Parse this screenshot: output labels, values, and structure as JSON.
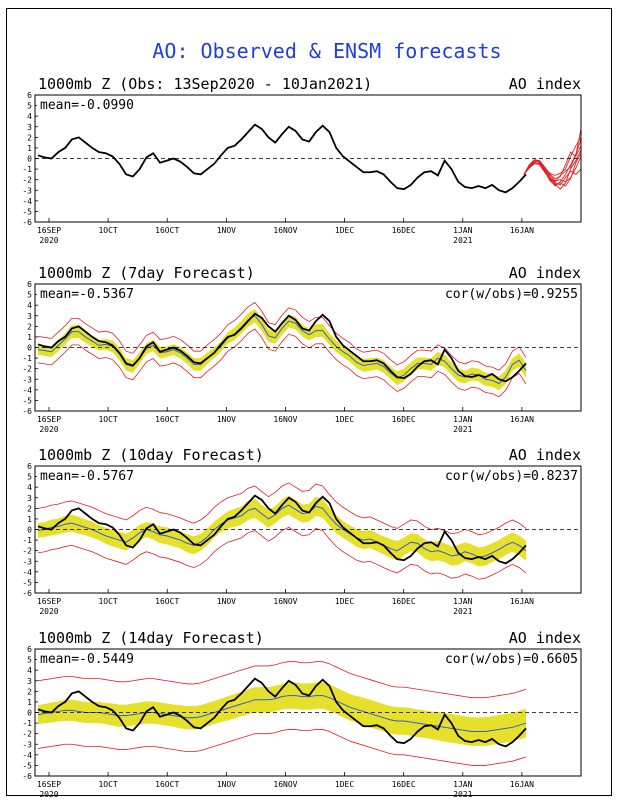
{
  "title": "AO: Observed & ENSM forecasts",
  "colors": {
    "title": "#1f3fd9",
    "observed": "#000000",
    "ensemble_member": "#e02020",
    "spread_band": "#e6e02a",
    "ensemble_mean": "#2f5fd0",
    "zero_line": "#000000"
  },
  "chart_data": [
    {
      "type": "line",
      "title": "1000mb Z (Obs: 13Sep2020 - 10Jan2021)",
      "right_label": "AO index",
      "stat_label": "mean=-0.0990",
      "cor_label": "",
      "ylim": [
        -6,
        6
      ],
      "yticks": [
        "6",
        "5",
        "4",
        "3",
        "2",
        "1",
        "0",
        "-1",
        "-2",
        "-3",
        "-4",
        "-5",
        "-6"
      ],
      "xticks": [
        "16SEP",
        "1OCT",
        "16OCT",
        "1NOV",
        "16NOV",
        "1DEC",
        "16DEC",
        "1JAN",
        "16JAN"
      ],
      "year_labels": [
        "2020",
        "2021"
      ],
      "observed": [
        0.3,
        0.1,
        0.0,
        0.6,
        1.0,
        1.8,
        2.0,
        1.5,
        1.0,
        0.6,
        0.5,
        0.2,
        -0.5,
        -1.5,
        -1.7,
        -1.0,
        0.1,
        0.5,
        -0.4,
        -0.2,
        0.0,
        -0.3,
        -0.8,
        -1.4,
        -1.5,
        -1.0,
        -0.5,
        0.3,
        1.0,
        1.2,
        1.8,
        2.5,
        3.2,
        2.8,
        2.0,
        1.5,
        2.3,
        3.0,
        2.6,
        1.8,
        1.6,
        2.5,
        3.1,
        2.5,
        1.0,
        0.2,
        -0.3,
        -0.8,
        -1.3,
        -1.3,
        -1.2,
        -1.5,
        -2.2,
        -2.8,
        -2.9,
        -2.5,
        -1.8,
        -1.3,
        -1.2,
        -1.6,
        -0.2,
        -1.0,
        -2.2,
        -2.7,
        -2.8,
        -2.6,
        -2.8,
        -2.5,
        -3.0,
        -3.2,
        -2.8,
        -2.2,
        -1.5
      ],
      "forecasts": [
        [
          -1.5,
          -0.8,
          -0.3,
          -0.3,
          -1.0,
          -1.8,
          -2.2,
          -1.6,
          -1.2,
          -0.8,
          0.3,
          2.8
        ],
        [
          -1.5,
          -0.7,
          -0.2,
          -0.4,
          -1.2,
          -2.0,
          -2.6,
          -2.2,
          -1.5,
          -0.6,
          0.4,
          1.8
        ],
        [
          -1.5,
          -0.9,
          -0.4,
          -0.6,
          -1.3,
          -1.9,
          -2.4,
          -2.9,
          -2.3,
          -1.0,
          -0.2,
          0.8
        ],
        [
          -1.5,
          -0.8,
          -0.3,
          -0.3,
          -0.9,
          -1.4,
          -1.6,
          -1.4,
          -1.0,
          0.2,
          1.2,
          2.0
        ],
        [
          -1.5,
          -0.6,
          -0.1,
          -0.2,
          -0.9,
          -1.6,
          -2.1,
          -2.0,
          -2.2,
          -1.8,
          -0.9,
          0.2
        ],
        [
          -1.5,
          -0.9,
          -0.5,
          -0.5,
          -1.1,
          -1.8,
          -2.3,
          -2.5,
          -1.8,
          -1.2,
          -1.5,
          -1.0
        ],
        [
          -1.5,
          -0.7,
          -0.2,
          -0.2,
          -0.8,
          -1.5,
          -1.9,
          -1.7,
          -0.6,
          0.6,
          0.2,
          1.2
        ],
        [
          -1.5,
          -0.8,
          -0.4,
          -0.5,
          -1.2,
          -2.1,
          -2.5,
          -2.3,
          -2.6,
          -1.9,
          -0.4,
          0.5
        ]
      ]
    },
    {
      "type": "line",
      "title": "1000mb Z (7day Forecast)",
      "right_label": "AO index",
      "stat_label": "mean=-0.5367",
      "cor_label": "cor(w/obs)=0.9255",
      "ylim": [
        -6,
        6
      ],
      "yticks": [
        "6",
        "5",
        "4",
        "3",
        "2",
        "1",
        "0",
        "-1",
        "-2",
        "-3",
        "-4",
        "-5",
        "-6"
      ],
      "xticks": [
        "16SEP",
        "1OCT",
        "16OCT",
        "1NOV",
        "16NOV",
        "1DEC",
        "16DEC",
        "1JAN",
        "16JAN"
      ],
      "year_labels": [
        "2020",
        "2021"
      ],
      "observed": [
        0.3,
        0.1,
        0.0,
        0.6,
        1.0,
        1.8,
        2.0,
        1.5,
        1.0,
        0.6,
        0.5,
        0.2,
        -0.5,
        -1.5,
        -1.7,
        -1.0,
        0.1,
        0.5,
        -0.4,
        -0.2,
        0.0,
        -0.3,
        -0.8,
        -1.4,
        -1.5,
        -1.0,
        -0.5,
        0.3,
        1.0,
        1.2,
        1.8,
        2.5,
        3.2,
        2.8,
        2.0,
        1.5,
        2.3,
        3.0,
        2.6,
        1.8,
        1.6,
        2.5,
        3.1,
        2.5,
        1.0,
        0.2,
        -0.3,
        -0.8,
        -1.3,
        -1.3,
        -1.2,
        -1.5,
        -2.2,
        -2.8,
        -2.9,
        -2.5,
        -1.8,
        -1.3,
        -1.2,
        -1.6,
        -0.2,
        -1.0,
        -2.2,
        -2.7,
        -2.8,
        -2.6,
        -2.8,
        -2.5,
        -3.0,
        -3.2,
        -2.8,
        -2.2,
        -1.5
      ],
      "mean": [
        -0.2,
        -0.3,
        -0.4,
        0.2,
        0.8,
        1.5,
        1.5,
        1.0,
        0.6,
        0.2,
        0.3,
        0.1,
        -0.6,
        -1.6,
        -1.8,
        -1.0,
        -0.1,
        0.2,
        -0.5,
        -0.4,
        -0.2,
        -0.5,
        -1.0,
        -1.6,
        -1.6,
        -1.0,
        -0.5,
        0.1,
        0.9,
        1.3,
        1.9,
        2.6,
        3.0,
        2.2,
        1.1,
        0.9,
        1.8,
        2.5,
        2.3,
        1.6,
        1.2,
        1.6,
        1.6,
        0.8,
        0.1,
        -0.4,
        -0.8,
        -1.4,
        -1.7,
        -1.6,
        -1.5,
        -1.8,
        -2.4,
        -2.9,
        -2.6,
        -2.0,
        -1.5,
        -1.5,
        -1.6,
        -1.0,
        -1.3,
        -2.0,
        -2.6,
        -2.8,
        -2.5,
        -2.6,
        -3.0,
        -3.1,
        -3.4,
        -2.8,
        -1.6,
        -1.2,
        -2.2
      ],
      "spread": [
        0.5,
        0.5,
        0.5,
        0.55,
        0.55,
        0.6,
        0.6,
        0.55,
        0.55,
        0.5,
        0.5,
        0.55,
        0.6,
        0.6,
        0.6,
        0.55,
        0.5,
        0.55,
        0.55,
        0.5,
        0.5,
        0.55,
        0.55,
        0.6,
        0.6,
        0.55,
        0.5,
        0.5,
        0.55,
        0.6,
        0.6,
        0.65,
        0.65,
        0.6,
        0.6,
        0.55,
        0.6,
        0.6,
        0.6,
        0.55,
        0.55,
        0.6,
        0.6,
        0.55,
        0.55,
        0.5,
        0.55,
        0.55,
        0.6,
        0.6,
        0.55,
        0.6,
        0.6,
        0.65,
        0.6,
        0.6,
        0.55,
        0.55,
        0.6,
        0.6,
        0.6,
        0.6,
        0.65,
        0.6,
        0.6,
        0.6,
        0.65,
        0.6,
        0.65,
        0.65,
        0.6,
        0.65,
        0.7
      ],
      "envelope": 1.25
    },
    {
      "type": "line",
      "title": "1000mb Z (10day Forecast)",
      "right_label": "AO index",
      "stat_label": "mean=-0.5767",
      "cor_label": "cor(w/obs)=0.8237",
      "ylim": [
        -6,
        6
      ],
      "yticks": [
        "6",
        "5",
        "4",
        "3",
        "2",
        "1",
        "0",
        "-1",
        "-2",
        "-3",
        "-4",
        "-5",
        "-6"
      ],
      "xticks": [
        "16SEP",
        "1OCT",
        "16OCT",
        "1NOV",
        "16NOV",
        "1DEC",
        "16DEC",
        "1JAN",
        "16JAN"
      ],
      "year_labels": [
        "2020",
        "2021"
      ],
      "observed": [
        0.3,
        0.1,
        0.0,
        0.6,
        1.0,
        1.8,
        2.0,
        1.5,
        1.0,
        0.6,
        0.5,
        0.2,
        -0.5,
        -1.5,
        -1.7,
        -1.0,
        0.1,
        0.5,
        -0.4,
        -0.2,
        0.0,
        -0.3,
        -0.8,
        -1.4,
        -1.5,
        -1.0,
        -0.5,
        0.3,
        1.0,
        1.2,
        1.8,
        2.5,
        3.2,
        2.8,
        2.0,
        1.5,
        2.3,
        3.0,
        2.6,
        1.8,
        1.6,
        2.5,
        3.1,
        2.5,
        1.0,
        0.2,
        -0.3,
        -0.8,
        -1.3,
        -1.3,
        -1.2,
        -1.5,
        -2.2,
        -2.8,
        -2.9,
        -2.5,
        -1.8,
        -1.3,
        -1.2,
        -1.6,
        -0.2,
        -1.0,
        -2.2,
        -2.7,
        -2.8,
        -2.6,
        -2.8,
        -2.5,
        -3.0,
        -3.2,
        -2.8,
        -2.2,
        -1.5
      ],
      "mean": [
        -0.1,
        0.0,
        0.2,
        0.3,
        0.5,
        0.6,
        0.4,
        0.2,
        0.0,
        -0.3,
        -0.6,
        -0.8,
        -1.0,
        -1.2,
        -0.8,
        -0.3,
        0.0,
        -0.2,
        -0.5,
        -0.6,
        -0.8,
        -1.0,
        -1.3,
        -1.5,
        -1.2,
        -0.7,
        0.0,
        0.5,
        0.9,
        1.1,
        1.3,
        1.8,
        2.0,
        1.5,
        1.0,
        1.4,
        2.0,
        2.3,
        1.9,
        1.5,
        1.6,
        2.2,
        2.0,
        1.2,
        0.5,
        0.0,
        -0.4,
        -0.8,
        -1.0,
        -0.9,
        -1.2,
        -1.5,
        -1.8,
        -2.0,
        -1.6,
        -1.2,
        -1.3,
        -1.8,
        -2.1,
        -2.0,
        -2.2,
        -2.5,
        -2.4,
        -2.1,
        -2.3,
        -2.6,
        -2.5,
        -2.2,
        -1.9,
        -1.5,
        -1.2,
        -1.5,
        -2.0
      ],
      "spread": [
        0.7,
        0.7,
        0.75,
        0.75,
        0.8,
        0.8,
        0.8,
        0.75,
        0.75,
        0.7,
        0.75,
        0.8,
        0.8,
        0.8,
        0.75,
        0.75,
        0.7,
        0.75,
        0.8,
        0.8,
        0.8,
        0.8,
        0.85,
        0.85,
        0.8,
        0.8,
        0.75,
        0.75,
        0.8,
        0.85,
        0.85,
        0.9,
        0.9,
        0.85,
        0.85,
        0.8,
        0.85,
        0.9,
        0.9,
        0.85,
        0.85,
        0.9,
        0.9,
        0.85,
        0.85,
        0.8,
        0.8,
        0.85,
        0.85,
        0.85,
        0.85,
        0.85,
        0.9,
        0.9,
        0.85,
        0.85,
        0.85,
        0.9,
        0.9,
        0.9,
        0.9,
        0.9,
        0.95,
        0.9,
        0.9,
        0.9,
        0.9,
        0.9,
        0.9,
        0.9,
        0.9,
        0.95,
        0.95
      ],
      "envelope": 2.1
    },
    {
      "type": "line",
      "title": "1000mb Z (14day Forecast)",
      "right_label": "AO index",
      "stat_label": "mean=-0.5449",
      "cor_label": "cor(w/obs)=0.6605",
      "ylim": [
        -6,
        6
      ],
      "yticks": [
        "6",
        "5",
        "4",
        "3",
        "2",
        "1",
        "0",
        "-1",
        "-2",
        "-3",
        "-4",
        "-5",
        "-6"
      ],
      "xticks": [
        "16SEP",
        "1OCT",
        "16OCT",
        "1NOV",
        "16NOV",
        "1DEC",
        "16DEC",
        "1JAN",
        "16JAN"
      ],
      "year_labels": [
        "2020",
        "2021"
      ],
      "observed": [
        0.3,
        0.1,
        0.0,
        0.6,
        1.0,
        1.8,
        2.0,
        1.5,
        1.0,
        0.6,
        0.5,
        0.2,
        -0.5,
        -1.5,
        -1.7,
        -1.0,
        0.1,
        0.5,
        -0.4,
        -0.2,
        0.0,
        -0.3,
        -0.8,
        -1.4,
        -1.5,
        -1.0,
        -0.5,
        0.3,
        1.0,
        1.2,
        1.8,
        2.5,
        3.2,
        2.8,
        2.0,
        1.5,
        2.3,
        3.0,
        2.6,
        1.8,
        1.6,
        2.5,
        3.1,
        2.5,
        1.0,
        0.2,
        -0.3,
        -0.8,
        -1.3,
        -1.3,
        -1.2,
        -1.5,
        -2.2,
        -2.8,
        -2.9,
        -2.5,
        -1.8,
        -1.3,
        -1.2,
        -1.6,
        -0.2,
        -1.0,
        -2.2,
        -2.7,
        -2.8,
        -2.6,
        -2.8,
        -2.5,
        -3.0,
        -3.2,
        -2.8,
        -2.2,
        -1.5
      ],
      "mean": [
        -0.2,
        -0.1,
        0.0,
        0.1,
        0.2,
        0.2,
        0.1,
        0.0,
        0.0,
        0.0,
        -0.1,
        -0.2,
        -0.3,
        -0.3,
        -0.2,
        -0.1,
        0.0,
        0.0,
        -0.1,
        -0.2,
        -0.3,
        -0.4,
        -0.5,
        -0.5,
        -0.4,
        -0.2,
        0.0,
        0.2,
        0.4,
        0.6,
        0.8,
        1.0,
        1.2,
        1.2,
        1.2,
        1.3,
        1.5,
        1.6,
        1.6,
        1.5,
        1.5,
        1.6,
        1.6,
        1.4,
        1.1,
        0.8,
        0.5,
        0.3,
        0.1,
        -0.1,
        -0.3,
        -0.5,
        -0.7,
        -0.8,
        -0.8,
        -0.9,
        -1.0,
        -1.1,
        -1.2,
        -1.3,
        -1.4,
        -1.5,
        -1.6,
        -1.7,
        -1.8,
        -1.8,
        -1.8,
        -1.7,
        -1.6,
        -1.5,
        -1.4,
        -1.2,
        -1.0
      ],
      "spread": [
        0.9,
        0.9,
        0.95,
        0.95,
        1.0,
        1.0,
        1.0,
        1.0,
        1.0,
        1.0,
        1.0,
        1.05,
        1.05,
        1.05,
        1.05,
        1.05,
        1.05,
        1.05,
        1.05,
        1.05,
        1.05,
        1.1,
        1.1,
        1.1,
        1.1,
        1.1,
        1.1,
        1.1,
        1.15,
        1.15,
        1.15,
        1.2,
        1.2,
        1.2,
        1.2,
        1.2,
        1.2,
        1.25,
        1.25,
        1.25,
        1.25,
        1.25,
        1.25,
        1.25,
        1.25,
        1.25,
        1.25,
        1.25,
        1.3,
        1.3,
        1.3,
        1.3,
        1.3,
        1.3,
        1.3,
        1.3,
        1.3,
        1.3,
        1.3,
        1.35,
        1.35,
        1.35,
        1.35,
        1.35,
        1.35,
        1.35,
        1.35,
        1.35,
        1.35,
        1.35,
        1.35,
        1.35,
        1.35
      ],
      "envelope": 3.2
    }
  ]
}
